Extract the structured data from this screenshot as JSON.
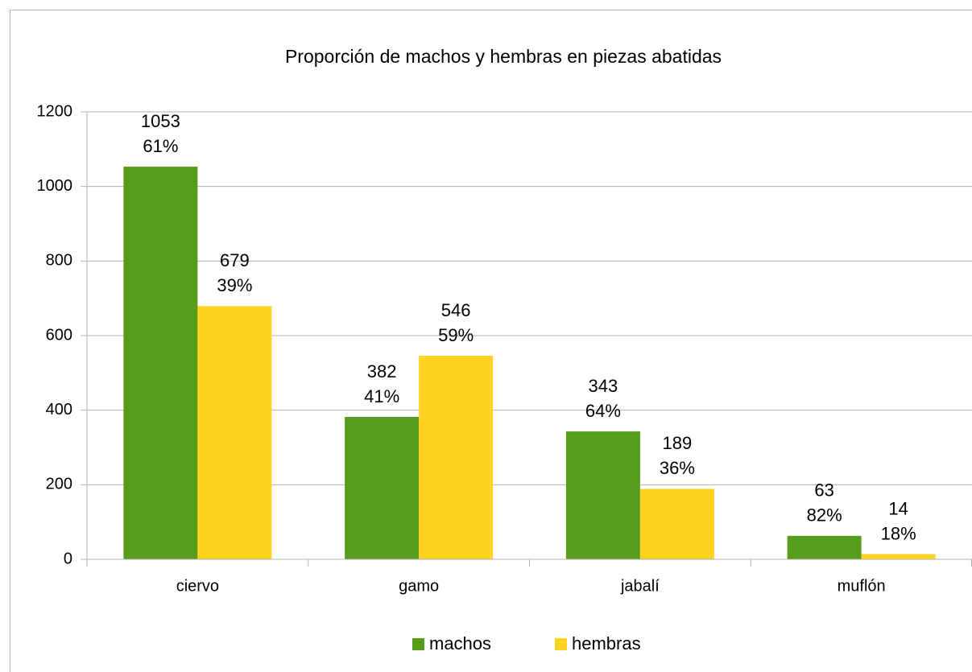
{
  "chart_data": {
    "type": "bar",
    "title": "Proporción de machos y hembras en piezas abatidas",
    "categories": [
      "ciervo",
      "gamo",
      "jabalí",
      "muflón"
    ],
    "series": [
      {
        "name": "machos",
        "color": "#579d1c",
        "values": [
          1053,
          382,
          343,
          63
        ],
        "share_labels": [
          "61%",
          "41%",
          "64%",
          "82%"
        ]
      },
      {
        "name": "hembras",
        "color": "#ffd320",
        "values": [
          679,
          546,
          189,
          14
        ],
        "share_labels": [
          "39%",
          "59%",
          "36%",
          "18%"
        ]
      }
    ],
    "ylim": [
      0,
      1200
    ],
    "yticks": [
      0,
      200,
      400,
      600,
      800,
      1000,
      1200
    ],
    "grid": true,
    "legend": "bottom"
  }
}
